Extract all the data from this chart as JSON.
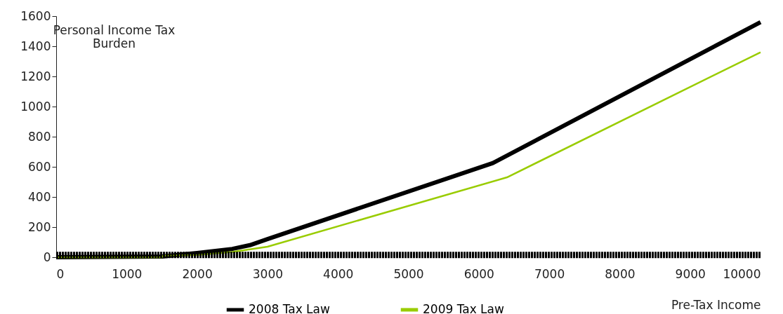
{
  "chart_data": {
    "type": "line",
    "xlabel": "Pre-Tax Income",
    "ylabel": "Personal Income Tax\nBurden",
    "xlim": [
      0,
      10000
    ],
    "xticks": [
      0,
      1000,
      2000,
      3000,
      4000,
      5000,
      6000,
      7000,
      8000,
      9000,
      10000
    ],
    "ylim": [
      0,
      1600
    ],
    "yticks": [
      0,
      200,
      400,
      600,
      800,
      1000,
      1200,
      1400,
      1600
    ],
    "grid": false,
    "legend": "bottom",
    "series": [
      {
        "name": "2008 Tax Law",
        "color": "#000000",
        "x": [
          0,
          1500,
          2000,
          2500,
          2750,
          3000,
          6200,
          10000
        ],
        "values": [
          0,
          5,
          28,
          55,
          80,
          120,
          625,
          1560
        ]
      },
      {
        "name": "2009 Tax Law",
        "color": "#99cc00",
        "x": [
          0,
          1500,
          1520,
          2000,
          2500,
          3000,
          6400,
          10000
        ],
        "values": [
          0,
          0,
          10,
          15,
          35,
          70,
          530,
          1360
        ]
      },
      {
        "color": "#000000",
        "line_style": "dashed",
        "x": [
          0,
          10000
        ],
        "values": [
          15,
          15
        ]
      }
    ]
  }
}
